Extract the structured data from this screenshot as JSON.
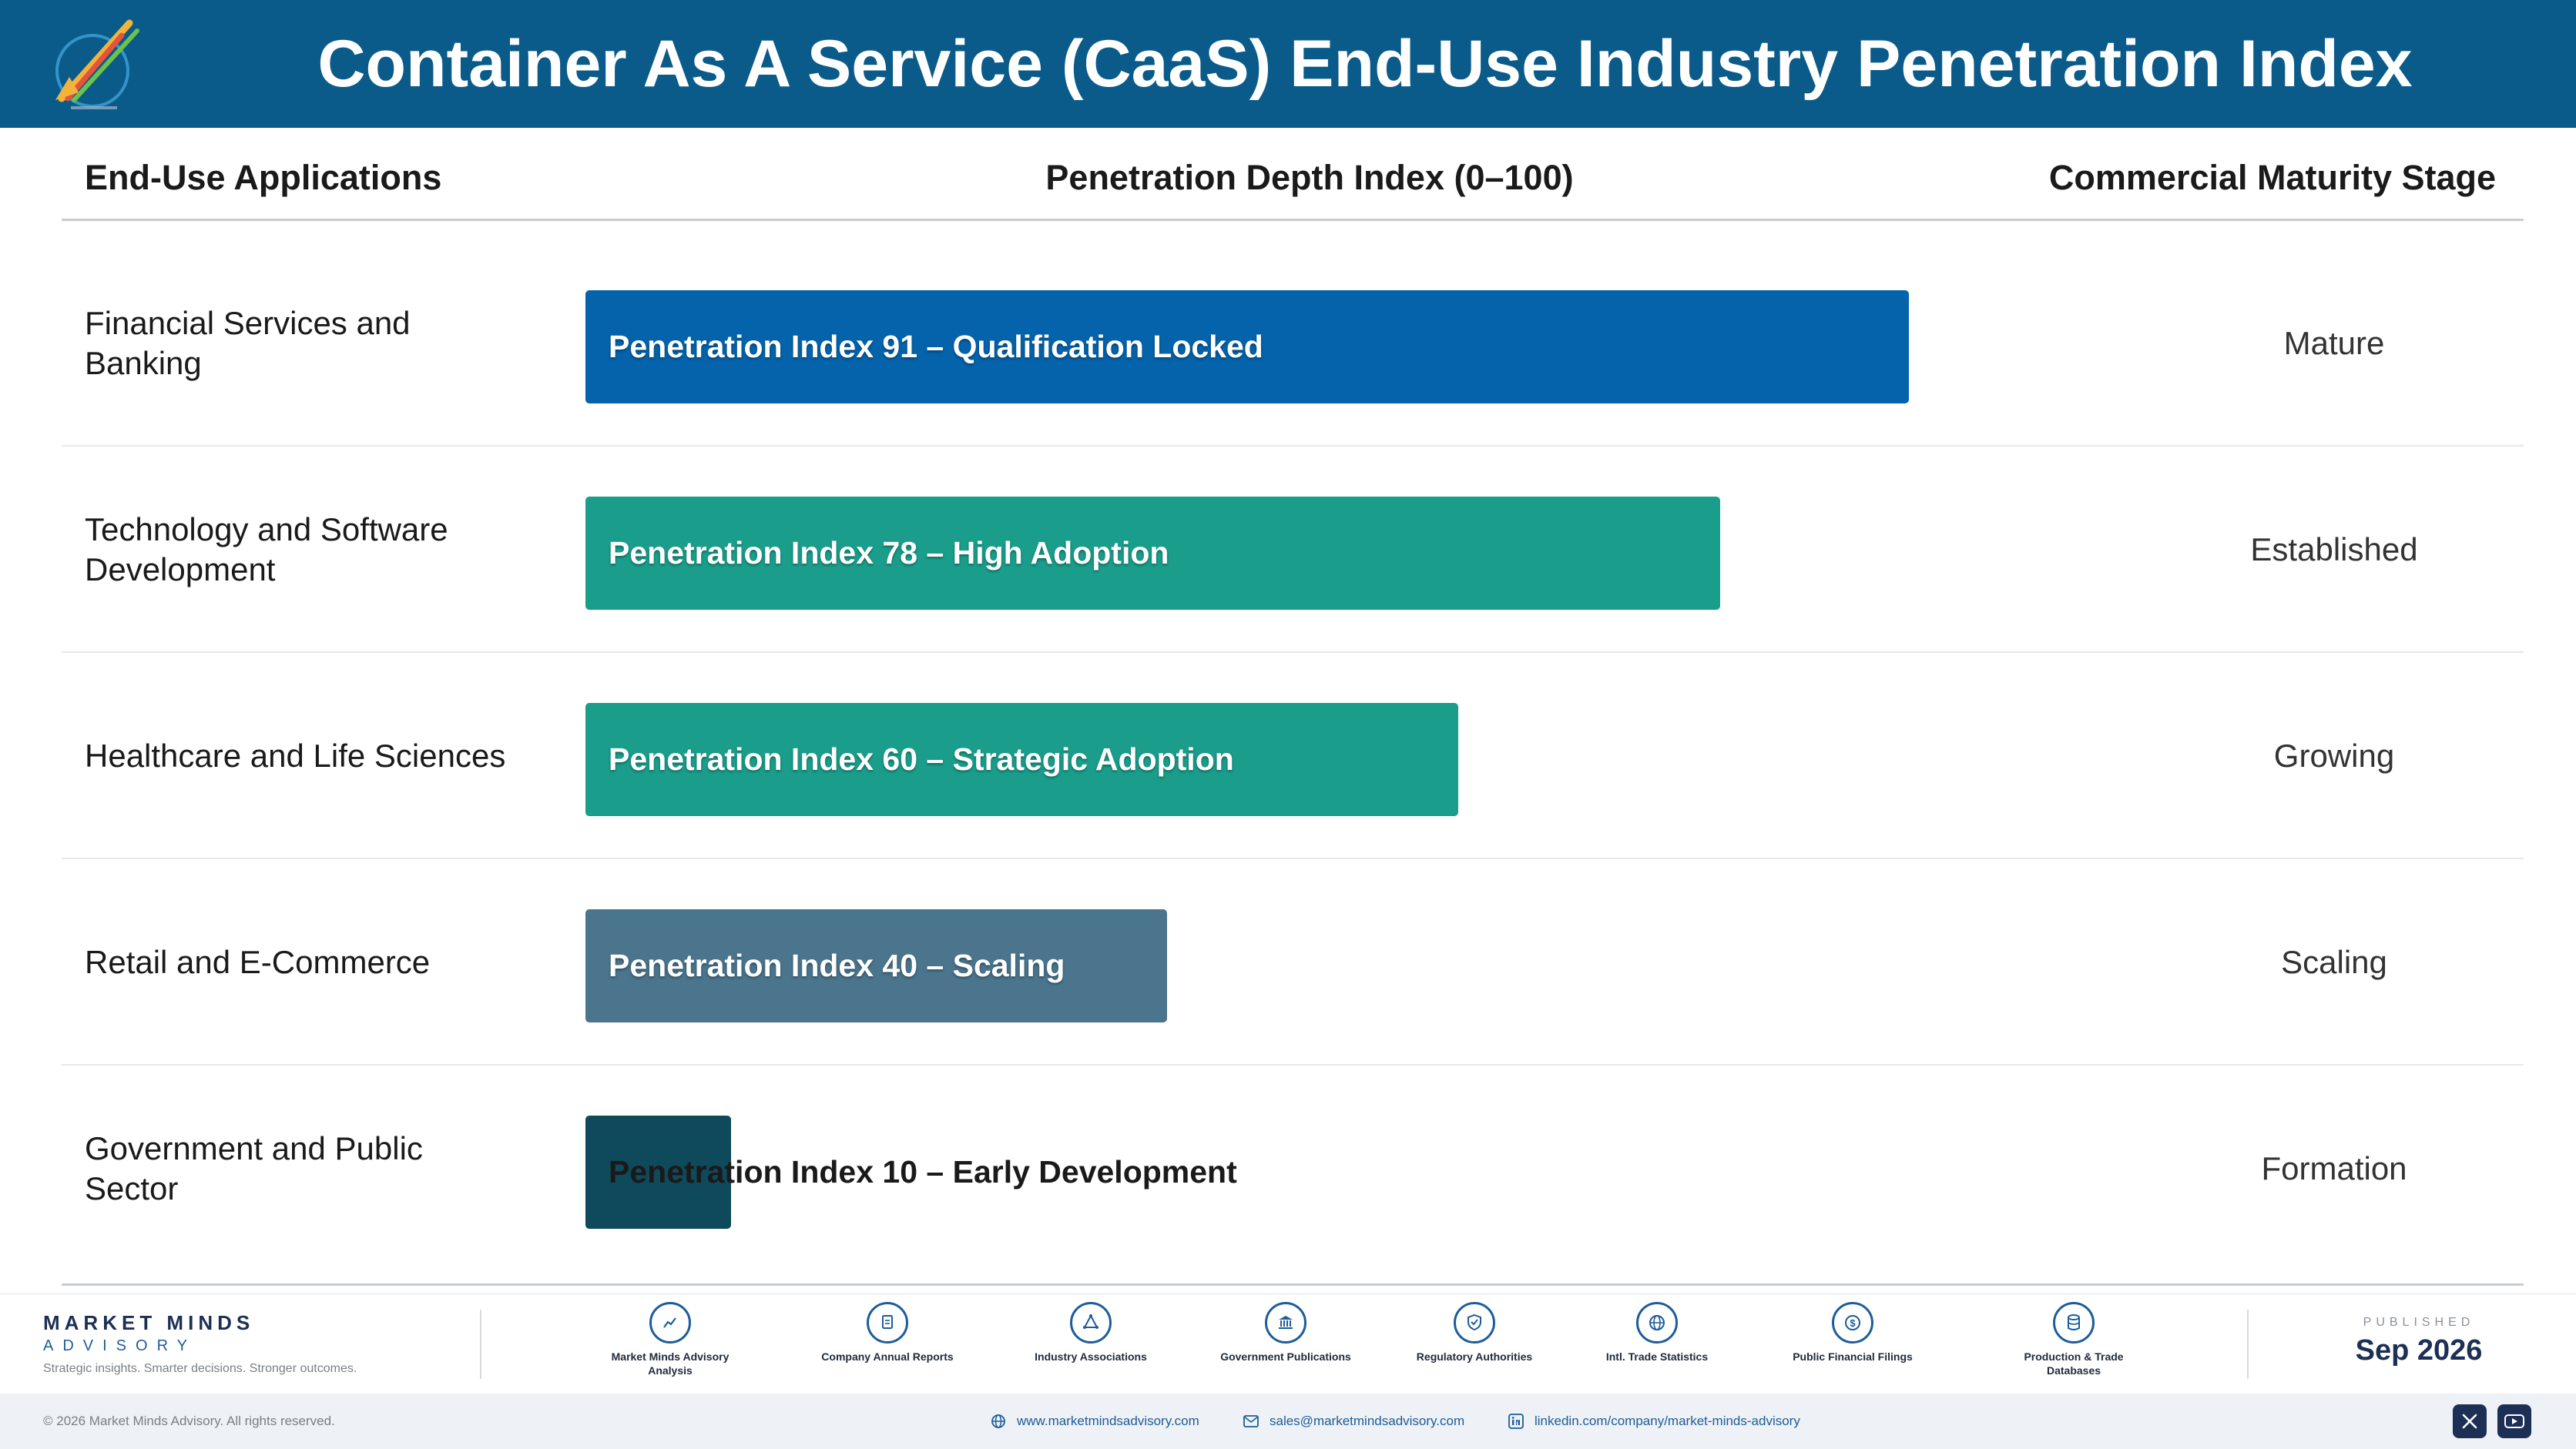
{
  "header": {
    "title": "Container As A Service (CaaS) End-Use Industry Penetration Index"
  },
  "columns": {
    "application": "End-Use Applications",
    "index": "Penetration Depth Index (0–100)",
    "stage": "Commercial Maturity Stage"
  },
  "chart_data": {
    "type": "bar",
    "orientation": "horizontal",
    "title": "Container As A Service (CaaS) End-Use Industry Penetration Index",
    "xlabel": "Penetration Depth Index (0–100)",
    "xlim": [
      0,
      100
    ],
    "grid": false,
    "categories": [
      "Financial Services and Banking",
      "Technology and Software Development",
      "Healthcare and Life Sciences",
      "Retail and E-Commerce",
      "Government and Public Sector"
    ],
    "values": [
      91,
      78,
      60,
      40,
      10
    ],
    "bar_labels": [
      "Penetration Index 91 – Qualification Locked",
      "Penetration Index 78 – High Adoption",
      "Penetration Index 60 – Strategic Adoption",
      "Penetration Index 40 – Scaling",
      "Penetration Index 10 – Early Development"
    ],
    "stages": [
      "Mature",
      "Established",
      "Growing",
      "Scaling",
      "Formation"
    ],
    "colors": [
      "#0563ab",
      "#1a9e8b",
      "#1a9e8b",
      "#4a758d",
      "#0e4a5c"
    ]
  },
  "footer": {
    "brand_name": "MARKET MINDS",
    "brand_sub": "ADVISORY",
    "brand_tagline": "Strategic insights. Smarter decisions. Stronger outcomes.",
    "sources": [
      {
        "label": "Market Minds Advisory Analysis",
        "icon": "chart-line-icon"
      },
      {
        "label": "Company Annual Reports",
        "icon": "document-icon"
      },
      {
        "label": "Industry Associations",
        "icon": "network-icon"
      },
      {
        "label": "Government Publications",
        "icon": "government-building-icon"
      },
      {
        "label": "Regulatory Authorities",
        "icon": "shield-check-icon"
      },
      {
        "label": "Intl. Trade Statistics",
        "icon": "globe-icon"
      },
      {
        "label": "Public Financial Filings",
        "icon": "dollar-coin-icon"
      },
      {
        "label": "Production & Trade Databases",
        "icon": "database-icon"
      }
    ],
    "published_label": "PUBLISHED",
    "published_date": "Sep 2026"
  },
  "bottombar": {
    "copyright": "© 2026 Market Minds Advisory. All rights reserved.",
    "website": "www.marketmindsadvisory.com",
    "email": "sales@marketmindsadvisory.com",
    "linkedin": "linkedin.com/company/market-minds-advisory"
  },
  "icons": {
    "x": "x-social-icon",
    "youtube": "youtube-icon"
  }
}
